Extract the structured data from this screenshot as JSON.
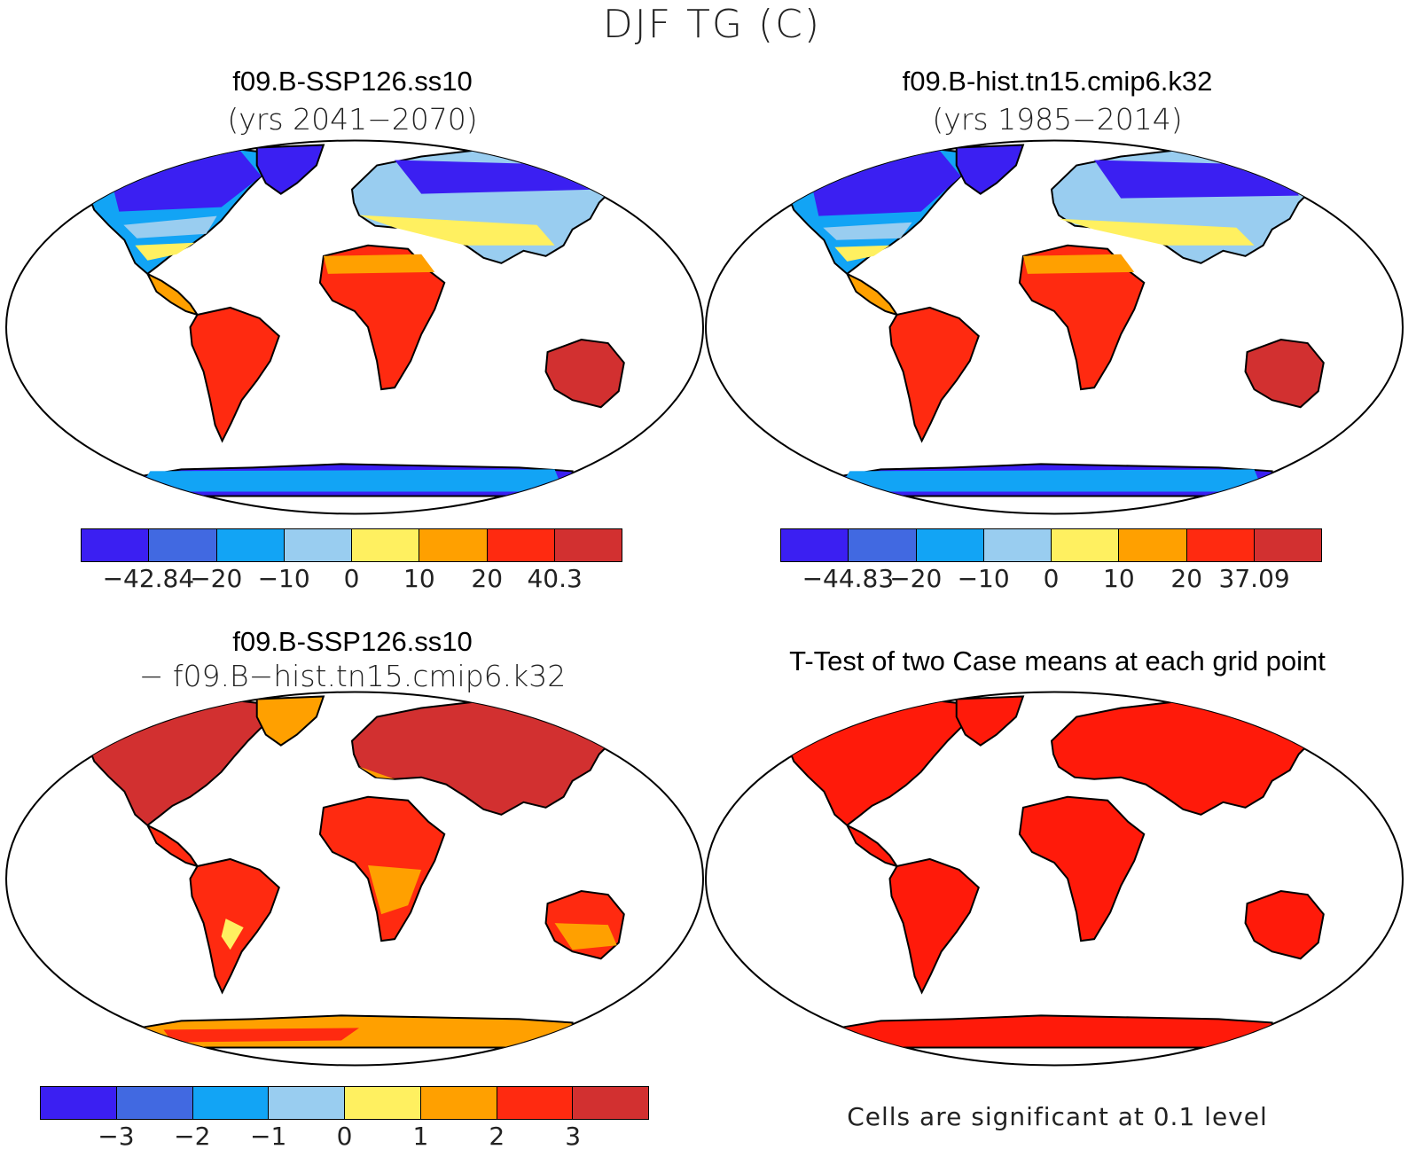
{
  "figure": {
    "title": "DJF TG (C)"
  },
  "panels": [
    {
      "id": "case",
      "title": "f09.B-SSP126.ss10",
      "subtitle": "(yrs 2041−2070)",
      "colorbar": {
        "colors": [
          "#3b1ff2",
          "#4169e1",
          "#12a4f5",
          "#99cdf0",
          "#fff060",
          "#ffa000",
          "#ff2a10",
          "#d23030"
        ],
        "labels": [
          "−42.84",
          "−20",
          "−10",
          "0",
          "10",
          "20",
          "40.3"
        ]
      }
    },
    {
      "id": "control",
      "title": "f09.B-hist.tn15.cmip6.k32",
      "subtitle": "(yrs 1985−2014)",
      "colorbar": {
        "colors": [
          "#3b1ff2",
          "#4169e1",
          "#12a4f5",
          "#99cdf0",
          "#fff060",
          "#ffa000",
          "#ff2a10",
          "#d23030"
        ],
        "labels": [
          "−44.83",
          "−20",
          "−10",
          "0",
          "10",
          "20",
          "37.09"
        ]
      }
    },
    {
      "id": "difference",
      "title": "f09.B-SSP126.ss10",
      "subtitle": "− f09.B−hist.tn15.cmip6.k32",
      "colorbar": {
        "colors": [
          "#3b1ff2",
          "#4169e1",
          "#12a4f5",
          "#99cdf0",
          "#fff060",
          "#ffa000",
          "#ff2a10",
          "#d23030"
        ],
        "labels": [
          "−3",
          "−2",
          "−1",
          "0",
          "1",
          "2",
          "3"
        ]
      }
    },
    {
      "id": "ttest",
      "title": "T-Test of two Case means at each grid point",
      "note": "Cells are significant at 0.1 level",
      "fill_color": "#ff1a0a"
    }
  ]
}
